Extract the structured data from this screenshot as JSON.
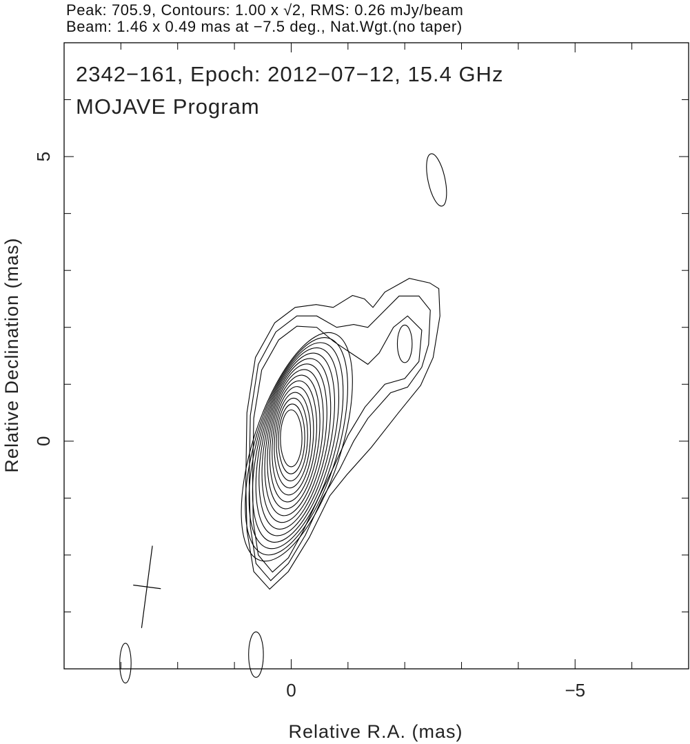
{
  "header": {
    "line1": "Peak: 705.9, Contours: 1.00 x √2, RMS: 0.26 mJy/beam",
    "line2": "Beam: 1.46 x 0.49 mas at −7.5 deg., Nat.Wgt.(no taper)"
  },
  "chart_data": {
    "type": "contour",
    "title": "2342−161, Epoch: 2012−07−12, 15.4 GHz",
    "subtitle": "MOJAVE Program",
    "xlabel": "Relative R.A. (mas)",
    "ylabel": "Relative Declination (mas)",
    "xlim": [
      4,
      -7
    ],
    "ylim": [
      -4,
      7
    ],
    "x_tick_labels": [
      {
        "value": 0,
        "label": "0"
      },
      {
        "value": -5,
        "label": "−5"
      }
    ],
    "y_tick_labels": [
      {
        "value": 0,
        "label": "0"
      },
      {
        "value": 5,
        "label": "5"
      }
    ],
    "minor_tick_step": 1,
    "peak": 705.9,
    "contour_base": 1.0,
    "contour_factor": "√2",
    "rms_mJy_per_beam": 0.26,
    "beam": {
      "major_mas": 1.46,
      "minor_mas": 0.49,
      "pa_deg": -7.5,
      "center": [
        2.54,
        -2.56
      ]
    },
    "outer_contour": [
      [
        0.38,
        -2.6
      ],
      [
        0.66,
        -2.29
      ],
      [
        0.78,
        -1.57
      ],
      [
        0.8,
        -0.72
      ],
      [
        0.78,
        0.5
      ],
      [
        0.63,
        1.47
      ],
      [
        0.29,
        2.08
      ],
      [
        -0.07,
        2.35
      ],
      [
        -0.44,
        2.4
      ],
      [
        -0.74,
        2.35
      ],
      [
        -1.08,
        2.56
      ],
      [
        -1.29,
        2.5
      ],
      [
        -1.44,
        2.35
      ],
      [
        -1.65,
        2.62
      ],
      [
        -2.08,
        2.86
      ],
      [
        -2.44,
        2.78
      ],
      [
        -2.6,
        2.68
      ],
      [
        -2.62,
        2.2
      ],
      [
        -2.5,
        1.47
      ],
      [
        -2.28,
        0.98
      ],
      [
        -1.89,
        0.5
      ],
      [
        -1.41,
        -0.11
      ],
      [
        -0.98,
        -0.59
      ],
      [
        -0.68,
        -0.96
      ],
      [
        -0.32,
        -1.69
      ],
      [
        0.05,
        -2.29
      ]
    ],
    "second_contour": [
      [
        0.36,
        -2.45
      ],
      [
        0.62,
        -2.15
      ],
      [
        0.72,
        -1.5
      ],
      [
        0.74,
        -0.7
      ],
      [
        0.72,
        0.45
      ],
      [
        0.58,
        1.35
      ],
      [
        0.27,
        1.92
      ],
      [
        -0.1,
        2.2
      ],
      [
        -0.45,
        2.2
      ],
      [
        -0.8,
        2.0
      ],
      [
        -1.1,
        2.05
      ],
      [
        -1.35,
        2.0
      ],
      [
        -1.55,
        2.2
      ],
      [
        -1.9,
        2.55
      ],
      [
        -2.25,
        2.55
      ],
      [
        -2.45,
        2.3
      ],
      [
        -2.42,
        1.7
      ],
      [
        -2.3,
        1.3
      ],
      [
        -2.05,
        0.95
      ],
      [
        -1.75,
        0.85
      ],
      [
        -1.35,
        0.4
      ],
      [
        -1.1,
        0.0
      ],
      [
        -0.85,
        -0.5
      ],
      [
        -0.55,
        -1.0
      ],
      [
        -0.25,
        -1.65
      ],
      [
        0.05,
        -2.15
      ]
    ],
    "third_contour": [
      [
        0.33,
        -2.3
      ],
      [
        0.58,
        -2.0
      ],
      [
        0.67,
        -1.4
      ],
      [
        0.68,
        -0.65
      ],
      [
        0.66,
        0.4
      ],
      [
        0.52,
        1.25
      ],
      [
        0.22,
        1.78
      ],
      [
        -0.1,
        2.02
      ],
      [
        -0.45,
        2.0
      ],
      [
        -0.75,
        1.75
      ],
      [
        -1.05,
        1.55
      ],
      [
        -1.35,
        1.35
      ],
      [
        -1.55,
        1.55
      ],
      [
        -1.8,
        2.0
      ],
      [
        -2.05,
        2.2
      ],
      [
        -2.3,
        1.95
      ],
      [
        -2.25,
        1.4
      ],
      [
        -2.0,
        1.1
      ],
      [
        -1.65,
        1.0
      ],
      [
        -1.3,
        0.6
      ],
      [
        -1.0,
        0.1
      ],
      [
        -0.75,
        -0.45
      ],
      [
        -0.48,
        -1.0
      ],
      [
        -0.2,
        -1.6
      ],
      [
        0.05,
        -2.05
      ]
    ],
    "jet_component": {
      "center": [
        -2.0,
        1.71
      ],
      "semi_ra": 0.13,
      "semi_dec": 0.33
    },
    "core_center": [
      0.0,
      0.05
    ],
    "isolated_components": [
      {
        "center": [
          -2.56,
          4.59
        ],
        "semi_ra": 0.15,
        "semi_dec": 0.47,
        "tilt_deg": -12
      },
      {
        "center": [
          2.92,
          -3.9
        ],
        "semi_ra": 0.1,
        "semi_dec": 0.35,
        "tilt_deg": 0
      },
      {
        "center": [
          0.62,
          -3.75
        ],
        "semi_ra": 0.13,
        "semi_dec": 0.4,
        "tilt_deg": 0
      }
    ]
  }
}
